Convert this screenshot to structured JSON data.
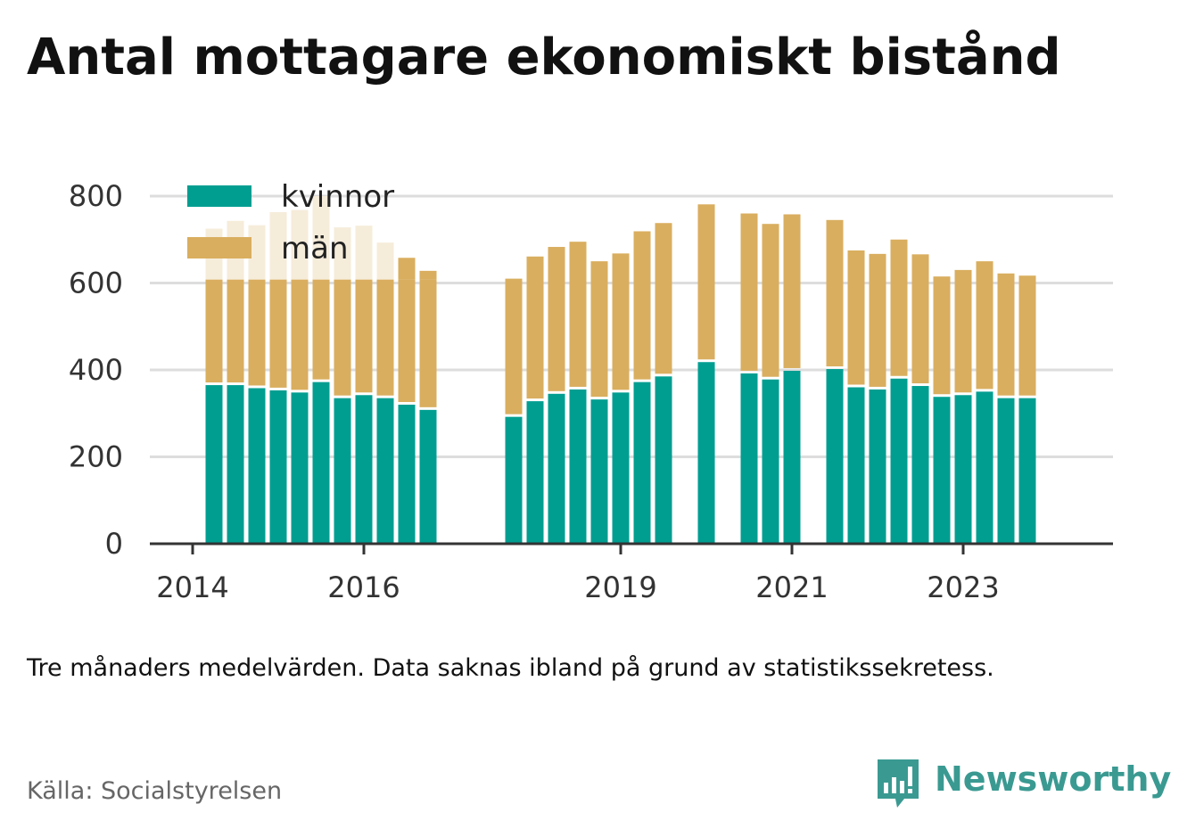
{
  "title": "Antal mottagare ekonomiskt bistånd",
  "note": "Tre månaders medelvärden. Data saknas ibland på grund av statistikssekretess.",
  "source": "Källa: Socialstyrelsen",
  "brand": "Newsworthy",
  "colors": {
    "kvinnor": "#009e91",
    "man": "#d9ae5f",
    "man_faded": "#f6ecda",
    "grid": "#dddddd",
    "axis": "#333333",
    "brand": "#3a9a92"
  },
  "chart_data": {
    "type": "bar",
    "stacked": true,
    "title": "Antal mottagare ekonomiskt bistånd",
    "xlabel": "",
    "ylabel": "",
    "ylim": [
      0,
      800
    ],
    "yticks": [
      0,
      200,
      400,
      600,
      800
    ],
    "grid": true,
    "legend": "top-left",
    "xaxis": {
      "start": 2013.5,
      "end": 2024.75
    },
    "xticks": [
      2014,
      2016,
      2019,
      2021,
      2023
    ],
    "x": [
      2014.25,
      2014.5,
      2014.75,
      2015.0,
      2015.25,
      2015.5,
      2015.75,
      2016.0,
      2016.25,
      2016.5,
      2016.75,
      2017.75,
      2018.0,
      2018.25,
      2018.5,
      2018.75,
      2019.0,
      2019.25,
      2019.5,
      2020.0,
      2020.5,
      2020.75,
      2021.0,
      2021.5,
      2021.75,
      2022.0,
      2022.25,
      2022.5,
      2022.75,
      2023.0,
      2023.25,
      2023.5,
      2023.75
    ],
    "series": [
      {
        "name": "kvinnor",
        "values": [
          365,
          365,
          358,
          353,
          348,
          372,
          335,
          342,
          335,
          320,
          308,
          292,
          328,
          345,
          355,
          332,
          348,
          372,
          385,
          418,
          392,
          378,
          398,
          402,
          360,
          355,
          380,
          363,
          338,
          342,
          350,
          335,
          335
        ]
      },
      {
        "name": "män",
        "values": [
          360,
          378,
          375,
          410,
          420,
          428,
          393,
          390,
          358,
          338,
          320,
          318,
          333,
          338,
          340,
          318,
          320,
          347,
          353,
          363,
          368,
          358,
          360,
          343,
          315,
          312,
          320,
          303,
          277,
          288,
          300,
          287,
          282
        ]
      }
    ]
  }
}
